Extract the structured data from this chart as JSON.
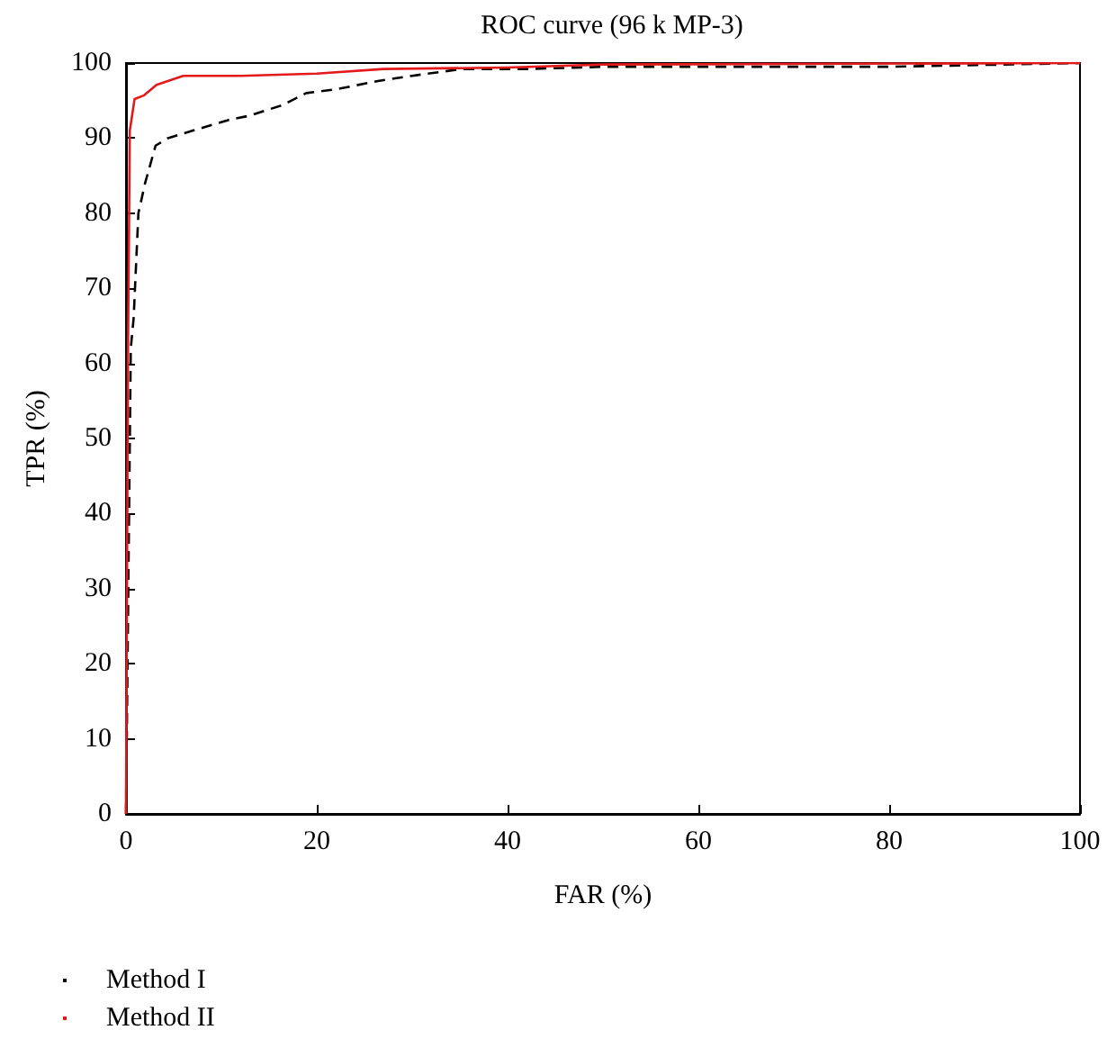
{
  "chart_data": {
    "type": "line",
    "title": "ROC curve (96 k MP-3)",
    "xlabel": "FAR (%)",
    "ylabel": "TPR (%)",
    "xlim": [
      0,
      100
    ],
    "xticks": [
      0,
      20,
      40,
      60,
      80,
      100
    ],
    "ylim": [
      0,
      100
    ],
    "yticks": [
      0,
      10,
      20,
      30,
      40,
      50,
      60,
      70,
      80,
      90,
      100
    ],
    "grid": false,
    "legend": "bottom left",
    "marker": "none",
    "series": [
      {
        "name": "Method I",
        "color": "#000000",
        "line_style": "dashed",
        "x": [
          0,
          0.5,
          0.8,
          1.3,
          2,
          3.1,
          4.4,
          7,
          10.7,
          13,
          16.4,
          18.9,
          22,
          26.4,
          30,
          35.2,
          42,
          50,
          80,
          100
        ],
        "values": [
          0,
          62,
          66,
          80,
          84,
          89,
          90,
          91,
          92.4,
          93,
          94.4,
          96,
          96.5,
          97.6,
          98.3,
          99.2,
          99.2,
          99.5,
          99.5,
          100
        ]
      },
      {
        "name": "Method II",
        "color": "#e31a1c",
        "line_style": "solid",
        "x": [
          0,
          0.2,
          0.4,
          0.9,
          1.9,
          3.2,
          6,
          12,
          20,
          27,
          40,
          50,
          100
        ],
        "values": [
          0,
          60,
          91,
          95.2,
          95.7,
          97.1,
          98.3,
          98.3,
          98.6,
          99.2,
          99.4,
          99.8,
          100
        ]
      }
    ]
  }
}
